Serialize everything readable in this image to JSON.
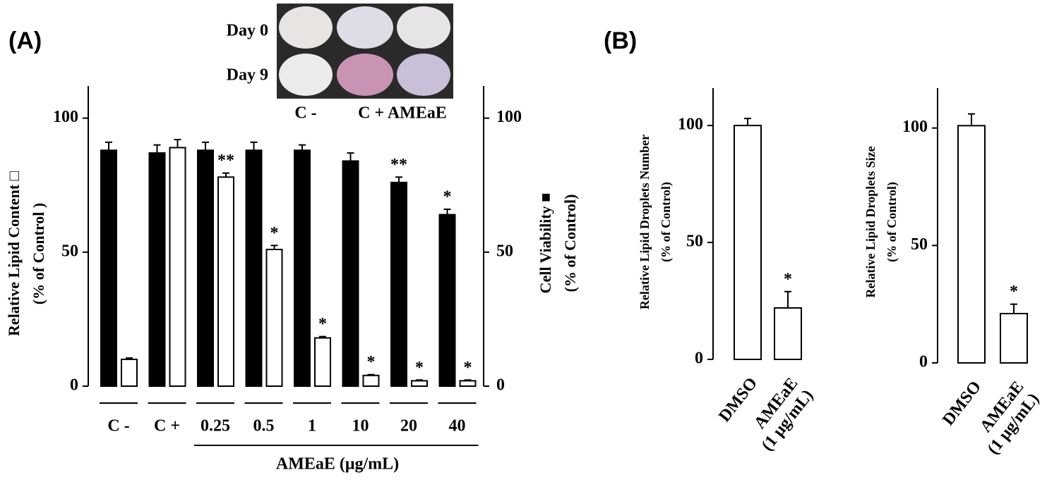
{
  "chart_data": [
    {
      "type": "bar",
      "panel": "(A)",
      "ylabel": [
        "Relative Lipid Content □",
        "(% of Control )"
      ],
      "y2label": [
        "Cell Viability ■",
        "(% of Control)"
      ],
      "xlabel": "AMEaE (μg/mL)",
      "inset": {
        "row_labels": [
          "Day 0",
          "Day 9"
        ],
        "column_labels": [
          "C -",
          "C + AMEaE"
        ]
      },
      "categories": [
        "C -",
        "C +",
        "0.25",
        "0.5",
        "1",
        "10",
        "20",
        "40"
      ],
      "series": [
        {
          "name": "Cell Viability",
          "color": "#000000",
          "axis": "y2",
          "values": [
            88,
            87,
            88,
            88,
            88,
            84,
            76,
            64
          ],
          "errors": [
            3,
            3,
            3,
            3,
            2,
            3,
            2,
            2
          ],
          "significance": [
            null,
            null,
            null,
            null,
            null,
            null,
            "**",
            "*"
          ]
        },
        {
          "name": "Relative Lipid Content",
          "color": "#ffffff",
          "values": [
            10,
            89,
            78,
            51,
            18,
            4,
            2,
            2
          ],
          "errors": [
            0.5,
            3,
            1.5,
            1.5,
            0.5,
            0.3,
            0.3,
            0.3
          ],
          "significance": [
            null,
            null,
            "**",
            "*",
            "*",
            "*",
            "*",
            "*"
          ]
        }
      ],
      "ylim": [
        0,
        112
      ],
      "yticks": [
        0,
        50,
        100
      ],
      "y2lim": [
        0,
        112
      ],
      "y2ticks": [
        0,
        50,
        100
      ]
    },
    {
      "type": "bar",
      "panel": "(B)",
      "ylabel": [
        "Relative Lipid Droplets Number",
        "(% of Control)"
      ],
      "categories": [
        "DMSO",
        "AMEaE\n(1 μg/mL)"
      ],
      "series": [
        {
          "name": "Relative Lipid Droplets Number",
          "color": "#ffffff",
          "values": [
            100,
            22
          ],
          "errors": [
            3,
            7
          ],
          "significance": [
            null,
            "*"
          ]
        }
      ],
      "ylim": [
        0,
        116
      ],
      "yticks": [
        0,
        50,
        100
      ]
    },
    {
      "type": "bar",
      "ylabel": [
        "Relative Lipid Droplets Size",
        "(% of Control)"
      ],
      "categories": [
        "DMSO",
        "AMEaE\n(1 μg/mL)"
      ],
      "series": [
        {
          "name": "Relative Lipid Droplets Size",
          "color": "#ffffff",
          "values": [
            101,
            21
          ],
          "errors": [
            5,
            4
          ],
          "significance": [
            null,
            "*"
          ]
        }
      ],
      "ylim": [
        0,
        117
      ],
      "yticks": [
        0,
        50,
        100
      ]
    }
  ]
}
